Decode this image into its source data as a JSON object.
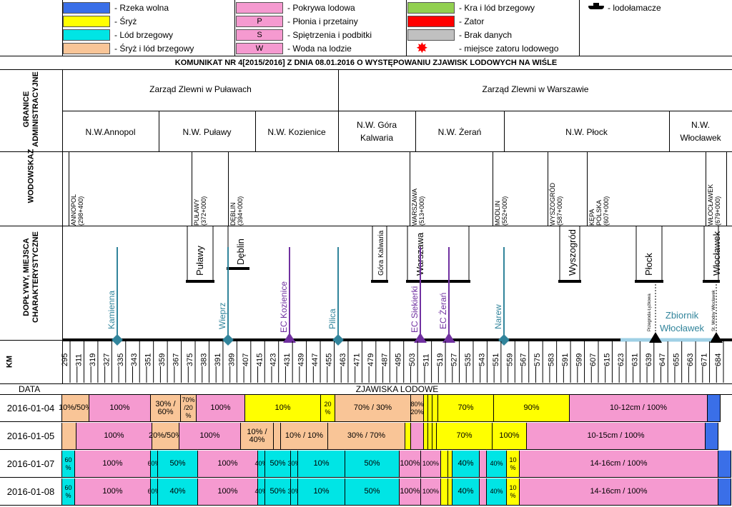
{
  "colors": {
    "rzeka_wolna": "#3a6fe8",
    "sryz": "#ffff00",
    "lod_brzegowy": "#00e5e5",
    "sryz_lod": "#f9c597",
    "pokrywa": "#f59ad0",
    "kra": "#92d050",
    "zator": "#ff0000",
    "brak": "#c0c0c0",
    "river": "#000000",
    "teal": "#31849b",
    "purple": "#7030a0",
    "reservoir": "#9fd0e6"
  },
  "legend": [
    {
      "code": "",
      "color": "rzeka_wolna",
      "label": "- Rzeka wolna"
    },
    {
      "code": "",
      "color": "sryz",
      "label": "- Śryż"
    },
    {
      "code": "",
      "color": "lod_brzegowy",
      "label": "- Lód brzegowy"
    },
    {
      "code": "",
      "color": "sryz_lod",
      "label": "- Śryż i lód brzegowy"
    },
    {
      "code": "",
      "color": "pokrywa",
      "label": "- Pokrywa lodowa"
    },
    {
      "code": "P",
      "color": "pokrywa",
      "label": "- Płonia i przetainy"
    },
    {
      "code": "S",
      "color": "pokrywa",
      "label": "- Spiętrzenia i podbitki"
    },
    {
      "code": "W",
      "color": "pokrywa",
      "label": "- Woda na lodzie"
    },
    {
      "code": "",
      "color": "kra",
      "label": "- Kra i lód brzegowy"
    },
    {
      "code": "",
      "color": "zator",
      "label": "- Zator"
    },
    {
      "code": "",
      "color": "brak",
      "label": "- Brak danych"
    },
    {
      "code": "",
      "color": "",
      "label": "- miejsce zatoru lodowego"
    },
    {
      "code": "",
      "color": "",
      "label": "- lodołamacze"
    }
  ],
  "title": "KOMUNIKAT NR 4[2015/2016] Z DNIA 08.01.2016 O WYSTĘPOWANIU ZJAWISK LODOWYCH NA WIŚLE",
  "side_labels": {
    "granice": "GRANICE ADMINISTRACYJNE",
    "wodowskaz": "WODOWSKAZ",
    "doplywy": "DOPŁYWY, MIEJSCA CHARAKTERYSTYCZNE",
    "km": "KM",
    "data": "DATA",
    "zjawiska": "ZJAWISKA LODOWE"
  },
  "zarzady": [
    "Zarząd Zlewni w Puławach",
    "Zarząd Zlewni w Warszawie"
  ],
  "nadzory": [
    "N.W.Annopol",
    "N.W. Puławy",
    "N.W. Kozienice",
    "N.W. Góra Kalwaria",
    "N.W. Żerań",
    "N.W. Płock",
    "N.W. Włocławek"
  ],
  "gauges": [
    "ANNOPOL (298+400)",
    "PUŁAWY (372+000)",
    "DĘBLIN (394+000)",
    "WARSZAWA (513+000)",
    "MODLIN (552+000)",
    "WYSZOGRÓD (587+000)",
    "KĘPA POLSKA (607+000)",
    "WŁOCŁAWEK (679+000)"
  ],
  "places": [
    "Puławy",
    "Dęblin",
    "Góra Kalwaria",
    "Warszawa",
    "Wyszogród",
    "Płock",
    "Włocławek"
  ],
  "tributaries": [
    "Kamienna",
    "Wieprz",
    "EC Kozienice",
    "Pilica",
    "EC Siekierki",
    "EC Żerań",
    "Narew"
  ],
  "reservoir": {
    "name": "Zbiornik Włocławek",
    "dam1": "Przegroda Łyżkowa",
    "dam2": "St. Wodny Włocławek"
  },
  "km_ticks": [
    "295",
    "311",
    "319",
    "327",
    "335",
    "343",
    "351",
    "359",
    "367",
    "375",
    "383",
    "391",
    "399",
    "407",
    "415",
    "423",
    "431",
    "439",
    "447",
    "455",
    "463",
    "471",
    "479",
    "487",
    "495",
    "503",
    "511",
    "519",
    "527",
    "535",
    "543",
    "551",
    "559",
    "567",
    "575",
    "583",
    "591",
    "599",
    "607",
    "615",
    "623",
    "631",
    "639",
    "647",
    "655",
    "663",
    "671",
    "684"
  ],
  "rows": [
    {
      "date": "2016-01-04",
      "segments": [
        {
          "w": 38,
          "c": "sryz_lod",
          "t": "10%/50%"
        },
        {
          "w": 86,
          "c": "pokrywa",
          "t": "100%"
        },
        {
          "w": 42,
          "c": "sryz_lod",
          "t": "30% / 60%"
        },
        {
          "w": 22,
          "c": "sryz_lod",
          "t": "70% /20 %"
        },
        {
          "w": 68,
          "c": "pokrywa",
          "t": "100%"
        },
        {
          "w": 106,
          "c": "sryz",
          "t": "10%"
        },
        {
          "w": 20,
          "c": "sryz",
          "t": "20 %"
        },
        {
          "w": 106,
          "c": "sryz_lod",
          "t": "70% / 30%"
        },
        {
          "w": 18,
          "c": "sryz_lod",
          "t": "80% 20%"
        },
        {
          "w": 6,
          "c": "sryz",
          "t": ""
        },
        {
          "w": 6,
          "c": "sryz",
          "t": ""
        },
        {
          "w": 8,
          "c": "sryz",
          "t": ""
        },
        {
          "w": 78,
          "c": "sryz",
          "t": "70%"
        },
        {
          "w": 106,
          "c": "sryz",
          "t": "90%"
        },
        {
          "w": 193,
          "c": "pokrywa",
          "t": "10-12cm / 100%"
        },
        {
          "w": 18,
          "c": "rzeka_wolna",
          "t": ""
        }
      ]
    },
    {
      "date": "2016-01-05",
      "segments": [
        {
          "w": 20,
          "c": "sryz_lod",
          "t": ""
        },
        {
          "w": 106,
          "c": "pokrywa",
          "t": "100%"
        },
        {
          "w": 38,
          "c": "sryz_lod",
          "t": "20%/50%"
        },
        {
          "w": 86,
          "c": "pokrywa",
          "t": "100%"
        },
        {
          "w": 46,
          "c": "sryz_lod",
          "t": "10% / 40%"
        },
        {
          "w": 10,
          "c": "sryz_lod",
          "t": ""
        },
        {
          "w": 66,
          "c": "sryz_lod",
          "t": "10% / 10%"
        },
        {
          "w": 108,
          "c": "sryz_lod",
          "t": "30% / 70%"
        },
        {
          "w": 8,
          "c": "sryz",
          "t": ""
        },
        {
          "w": 18,
          "c": "pokrywa",
          "t": ""
        },
        {
          "w": 6,
          "c": "sryz",
          "t": ""
        },
        {
          "w": 6,
          "c": "sryz",
          "t": ""
        },
        {
          "w": 6,
          "c": "sryz",
          "t": ""
        },
        {
          "w": 78,
          "c": "sryz",
          "t": "70%"
        },
        {
          "w": 48,
          "c": "sryz",
          "t": "100%"
        },
        {
          "w": 250,
          "c": "pokrywa",
          "t": "10-15cm / 100%"
        },
        {
          "w": 18,
          "c": "rzeka_wolna",
          "t": ""
        }
      ]
    },
    {
      "date": "2016-01-07",
      "segments": [
        {
          "w": 18,
          "c": "lod_brzegowy",
          "t": "60 %"
        },
        {
          "w": 106,
          "c": "pokrywa",
          "t": "100%"
        },
        {
          "w": 10,
          "c": "lod_brzegowy",
          "t": "60%"
        },
        {
          "w": 56,
          "c": "lod_brzegowy",
          "t": "50%"
        },
        {
          "w": 84,
          "c": "pokrywa",
          "t": "100%"
        },
        {
          "w": 10,
          "c": "lod_brzegowy",
          "t": "40%"
        },
        {
          "w": 36,
          "c": "lod_brzegowy",
          "t": "50%"
        },
        {
          "w": 10,
          "c": "lod_brzegowy",
          "t": "30%"
        },
        {
          "w": 66,
          "c": "lod_brzegowy",
          "t": "10%"
        },
        {
          "w": 76,
          "c": "lod_brzegowy",
          "t": "50%"
        },
        {
          "w": 30,
          "c": "pokrywa",
          "t": "100%"
        },
        {
          "w": 28,
          "c": "pokrywa",
          "t": "100%"
        },
        {
          "w": 10,
          "c": "sryz",
          "t": ""
        },
        {
          "w": 6,
          "c": "sryz",
          "t": ""
        },
        {
          "w": 38,
          "c": "lod_brzegowy",
          "t": "40%"
        },
        {
          "w": 10,
          "c": "pokrywa",
          "t": ""
        },
        {
          "w": 28,
          "c": "lod_brzegowy",
          "t": "40%"
        },
        {
          "w": 18,
          "c": "sryz",
          "t": "10 %"
        },
        {
          "w": 278,
          "c": "pokrywa",
          "t": "14-16cm / 100%"
        },
        {
          "w": 18,
          "c": "rzeka_wolna",
          "t": ""
        }
      ]
    },
    {
      "date": "2016-01-08",
      "segments": [
        {
          "w": 18,
          "c": "lod_brzegowy",
          "t": "60 %"
        },
        {
          "w": 106,
          "c": "pokrywa",
          "t": "100%"
        },
        {
          "w": 10,
          "c": "lod_brzegowy",
          "t": "60%"
        },
        {
          "w": 56,
          "c": "lod_brzegowy",
          "t": "40%"
        },
        {
          "w": 84,
          "c": "pokrywa",
          "t": "100%"
        },
        {
          "w": 10,
          "c": "lod_brzegowy",
          "t": "40%"
        },
        {
          "w": 36,
          "c": "lod_brzegowy",
          "t": "50%"
        },
        {
          "w": 10,
          "c": "lod_brzegowy",
          "t": "30%"
        },
        {
          "w": 66,
          "c": "lod_brzegowy",
          "t": "10%"
        },
        {
          "w": 76,
          "c": "lod_brzegowy",
          "t": "50%"
        },
        {
          "w": 30,
          "c": "pokrywa",
          "t": "100%"
        },
        {
          "w": 28,
          "c": "pokrywa",
          "t": "100%"
        },
        {
          "w": 10,
          "c": "sryz",
          "t": ""
        },
        {
          "w": 6,
          "c": "sryz",
          "t": ""
        },
        {
          "w": 38,
          "c": "lod_brzegowy",
          "t": "40%"
        },
        {
          "w": 10,
          "c": "pokrywa",
          "t": ""
        },
        {
          "w": 28,
          "c": "lod_brzegowy",
          "t": "40%"
        },
        {
          "w": 18,
          "c": "sryz",
          "t": "10 %"
        },
        {
          "w": 278,
          "c": "pokrywa",
          "t": "14-16cm / 100%"
        },
        {
          "w": 18,
          "c": "rzeka_wolna",
          "t": ""
        }
      ]
    }
  ]
}
